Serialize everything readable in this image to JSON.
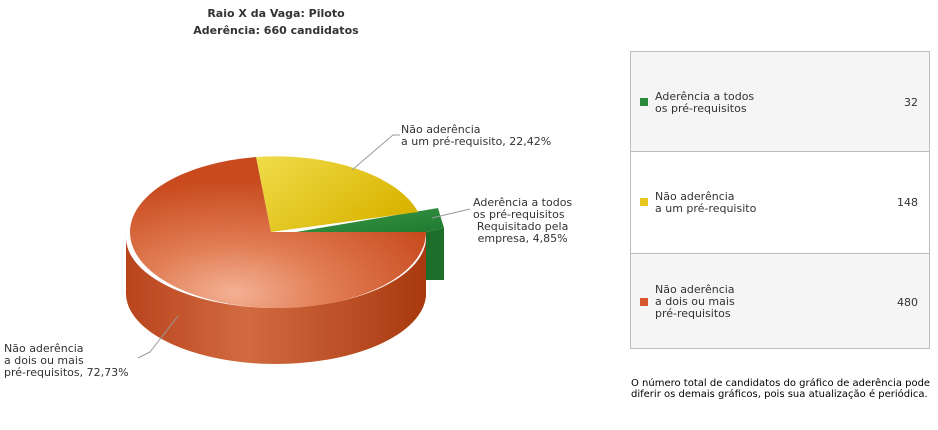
{
  "title": {
    "line1": "Raio X da Vaga: Piloto",
    "line2": "Aderência: 660  candidatos"
  },
  "chart_data": {
    "type": "pie",
    "title": "Raio X da Vaga: Piloto",
    "subtitle": "Aderência: 660  candidatos",
    "slices": [
      {
        "name": "Não aderência a um pré-requisito",
        "label_lines": [
          "Não aderência",
          "a um pré-requisito, 22,42%"
        ],
        "percent": 22.42,
        "value": 148,
        "color": "#e8c81e"
      },
      {
        "name": "Aderência a todos os pré-requisitos",
        "label_lines": [
          "Aderência a todos",
          "os pré-requisitos",
          "Requisitado pela",
          "empresa, 4,85%"
        ],
        "percent": 4.85,
        "value": 32,
        "color": "#2a8a3a"
      },
      {
        "name": "Não aderência a dois ou mais pré-requisitos",
        "label_lines": [
          "Não aderência",
          "a dois ou mais",
          "pré-requisitos, 72,73%"
        ],
        "percent": 72.73,
        "value": 480,
        "color": "#d4562a"
      }
    ]
  },
  "legend": {
    "items": [
      {
        "lines": [
          "Aderência a todos",
          "os pré-requisitos"
        ],
        "value": "32",
        "color": "#2a8a3a"
      },
      {
        "lines": [
          "Não aderência",
          "a um pré-requisito"
        ],
        "value": "148",
        "color": "#e8c81e"
      },
      {
        "lines": [
          "Não aderência",
          "a dois ou mais",
          "pré-requisitos"
        ],
        "value": "480",
        "color": "#d4562a"
      }
    ]
  },
  "note": "O número total de candidatos do gráfico de aderência pode diferir os demais gráficos, pois sua atualização é periódica."
}
